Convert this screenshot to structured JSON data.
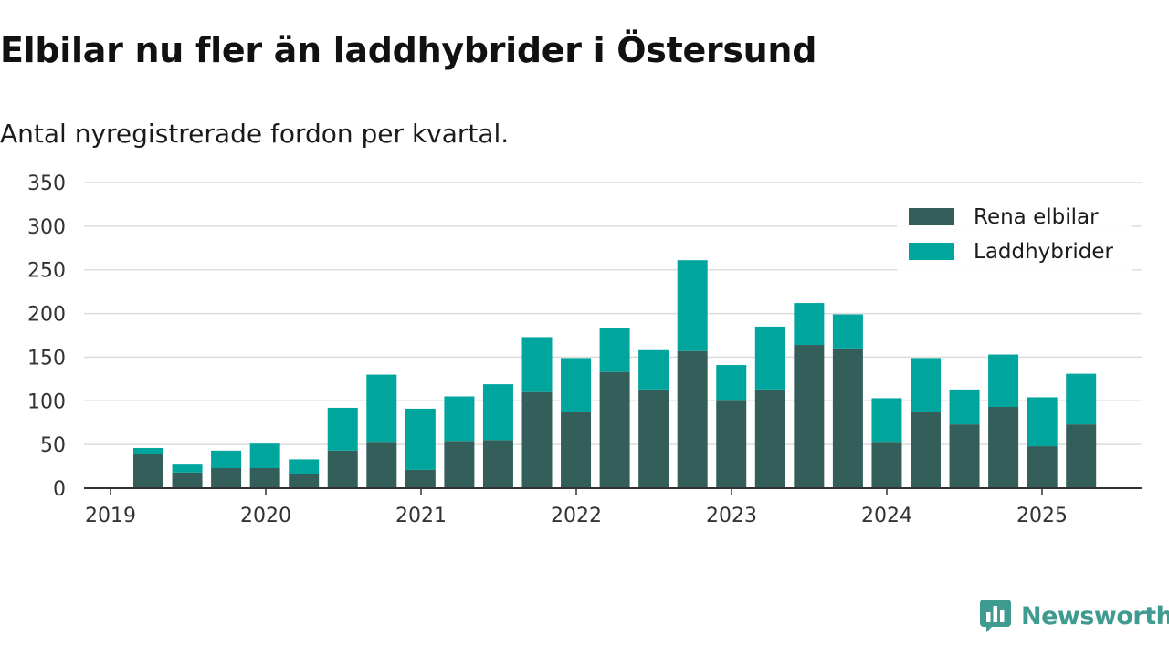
{
  "header": {
    "title": "Elbilar nu fler än laddhybrider i Östersund",
    "subtitle": "Antal nyregistrerade fordon per kvartal."
  },
  "brand": {
    "name": "Newsworthy",
    "icon": "newsworthy-logo-icon",
    "color": "#3f9a90"
  },
  "chart_data": {
    "type": "bar",
    "stacked": true,
    "categories": [
      "2019 Q2",
      "2019 Q3",
      "2019 Q4",
      "2020 Q1",
      "2020 Q2",
      "2020 Q3",
      "2020 Q4",
      "2021 Q1",
      "2021 Q2",
      "2021 Q3",
      "2021 Q4",
      "2022 Q1",
      "2022 Q2",
      "2022 Q3",
      "2022 Q4",
      "2023 Q1",
      "2023 Q2",
      "2023 Q3",
      "2023 Q4",
      "2024 Q1",
      "2024 Q2",
      "2024 Q3",
      "2024 Q4",
      "2025 Q1",
      "2025 Q2"
    ],
    "series": [
      {
        "name": "Rena elbilar",
        "color": "#345e5a",
        "values": [
          39,
          18,
          23,
          23,
          16,
          43,
          53,
          21,
          54,
          55,
          110,
          87,
          133,
          113,
          157,
          101,
          113,
          164,
          160,
          53,
          87,
          73,
          93,
          48,
          73
        ]
      },
      {
        "name": "Laddhybrider",
        "color": "#00a59d",
        "values": [
          7,
          9,
          20,
          28,
          17,
          49,
          77,
          70,
          51,
          64,
          63,
          62,
          50,
          45,
          104,
          40,
          72,
          48,
          39,
          50,
          62,
          40,
          60,
          56,
          58
        ]
      }
    ],
    "x_ticks": [
      "2019",
      "2020",
      "2021",
      "2022",
      "2023",
      "2024",
      "2025"
    ],
    "y_ticks": [
      "0",
      "50",
      "100",
      "150",
      "200",
      "250",
      "300",
      "350"
    ],
    "ylim": [
      0,
      350
    ],
    "grid": true,
    "legend_position": "top-right"
  }
}
